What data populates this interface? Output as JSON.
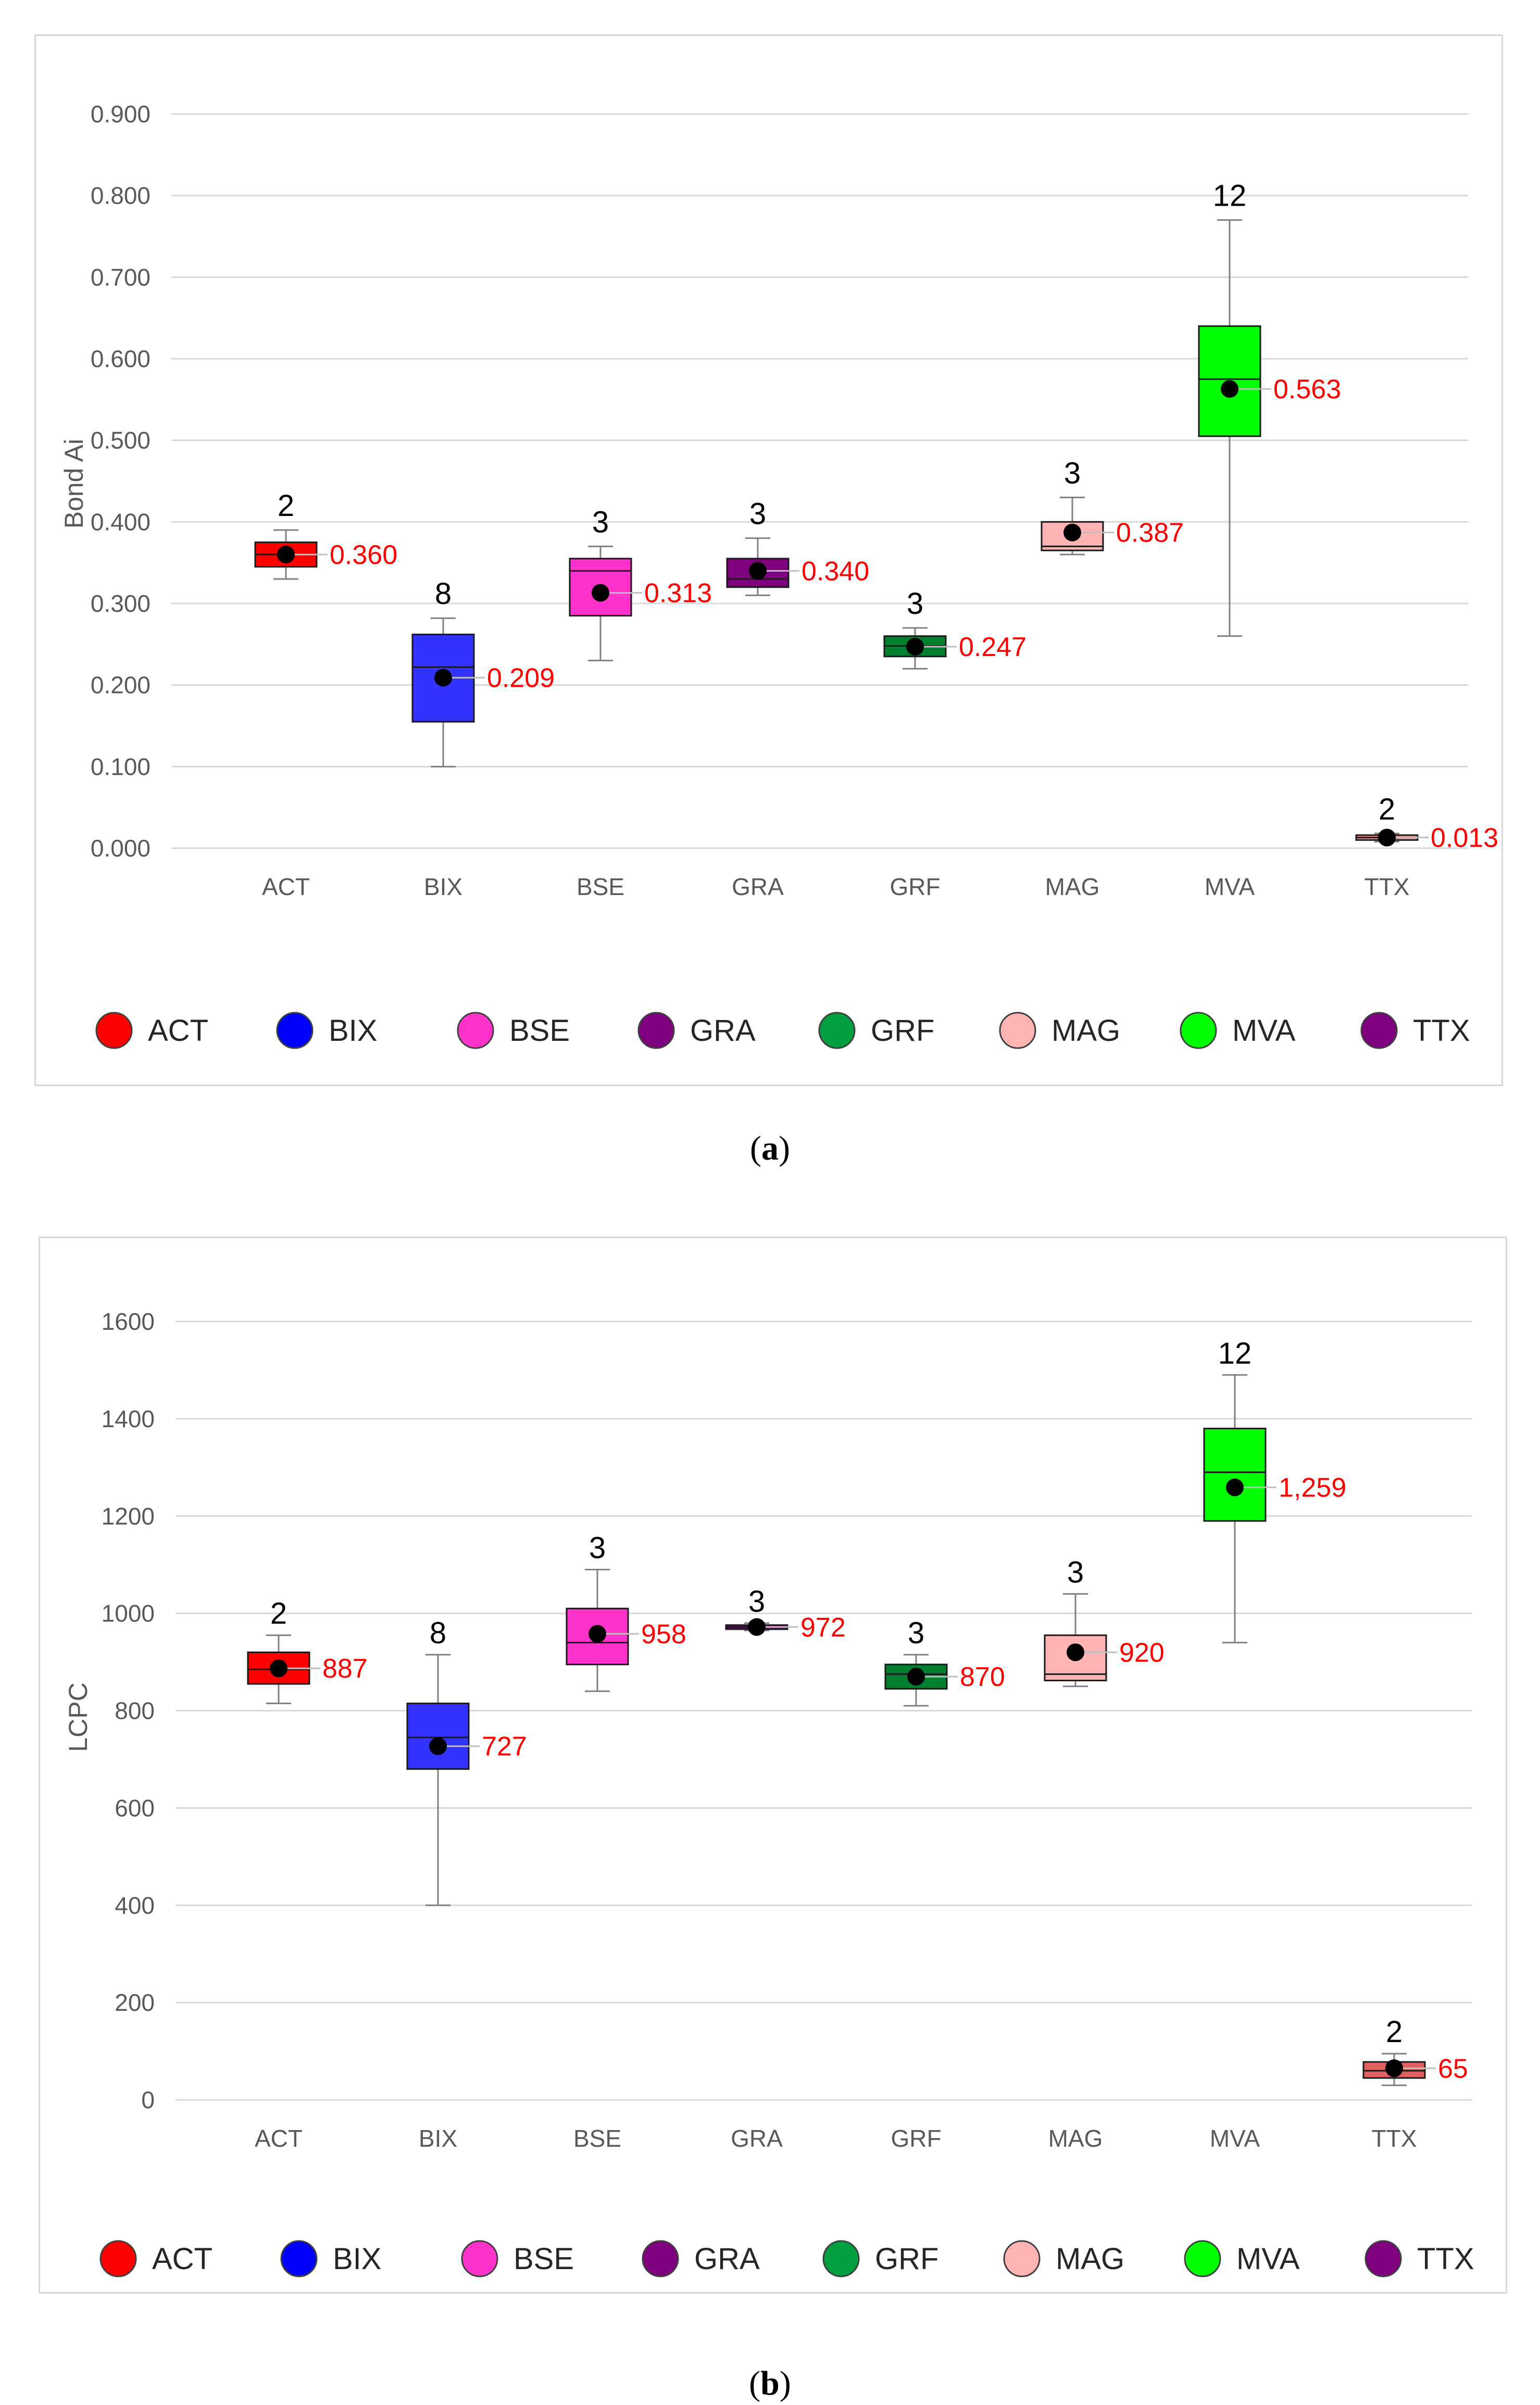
{
  "captions": {
    "a": "a",
    "b": "b"
  },
  "chart_data": [
    {
      "type": "box",
      "panel": "a",
      "ylabel": "Bond Ai",
      "ylim": [
        0,
        0.9
      ],
      "yticks": [
        "0.000",
        "0.100",
        "0.200",
        "0.300",
        "0.400",
        "0.500",
        "0.600",
        "0.700",
        "0.800",
        "0.900"
      ],
      "categories": [
        "ACT",
        "BIX",
        "BSE",
        "GRA",
        "GRF",
        "MAG",
        "MVA",
        "TTX"
      ],
      "boxes": [
        {
          "name": "ACT",
          "min": 0.33,
          "q1": 0.345,
          "median": 0.36,
          "q3": 0.375,
          "max": 0.39,
          "mean": 0.36,
          "n": "2",
          "mean_label": "0.360",
          "color": "#ff0000"
        },
        {
          "name": "BIX",
          "min": 0.1,
          "q1": 0.155,
          "median": 0.222,
          "q3": 0.262,
          "max": 0.282,
          "mean": 0.209,
          "n": "8",
          "mean_label": "0.209",
          "color": "#3333ff"
        },
        {
          "name": "BSE",
          "min": 0.23,
          "q1": 0.285,
          "median": 0.34,
          "q3": 0.355,
          "max": 0.37,
          "mean": 0.313,
          "n": "3",
          "mean_label": "0.313",
          "color": "#ff33cc"
        },
        {
          "name": "GRA",
          "min": 0.31,
          "q1": 0.32,
          "median": 0.33,
          "q3": 0.355,
          "max": 0.38,
          "mean": 0.34,
          "n": "3",
          "mean_label": "0.340",
          "color": "#7f007f"
        },
        {
          "name": "GRF",
          "min": 0.22,
          "q1": 0.235,
          "median": 0.248,
          "q3": 0.26,
          "max": 0.27,
          "mean": 0.247,
          "n": "3",
          "mean_label": "0.247",
          "color": "#007f2f"
        },
        {
          "name": "MAG",
          "min": 0.36,
          "q1": 0.365,
          "median": 0.37,
          "q3": 0.4,
          "max": 0.43,
          "mean": 0.387,
          "n": "3",
          "mean_label": "0.387",
          "color": "#ffb3b3"
        },
        {
          "name": "MVA",
          "min": 0.26,
          "q1": 0.505,
          "median": 0.575,
          "q3": 0.64,
          "max": 0.77,
          "mean": 0.563,
          "n": "12",
          "mean_label": "0.563",
          "color": "#00ff00"
        },
        {
          "name": "TTX",
          "min": 0.008,
          "q1": 0.01,
          "median": 0.013,
          "q3": 0.016,
          "max": 0.018,
          "mean": 0.013,
          "n": "2",
          "mean_label": "0.013",
          "color": "#ff9999"
        }
      ],
      "legend": [
        {
          "label": "ACT",
          "color": "#ff0000"
        },
        {
          "label": "BIX",
          "color": "#0000ff"
        },
        {
          "label": "BSE",
          "color": "#ff33cc"
        },
        {
          "label": "GRA",
          "color": "#7f007f"
        },
        {
          "label": "GRF",
          "color": "#00a040"
        },
        {
          "label": "MAG",
          "color": "#ffb3b3"
        },
        {
          "label": "MVA",
          "color": "#00ff00"
        },
        {
          "label": "TTX",
          "color": "#7f007f"
        }
      ],
      "legend_position": "bottom",
      "mean_label_color": "#ff0000"
    },
    {
      "type": "box",
      "panel": "b",
      "ylabel": "LCPC",
      "ylim": [
        0,
        1600
      ],
      "yticks": [
        "0",
        "200",
        "400",
        "600",
        "800",
        "1000",
        "1200",
        "1400",
        "1600"
      ],
      "categories": [
        "ACT",
        "BIX",
        "BSE",
        "GRA",
        "GRF",
        "MAG",
        "MVA",
        "TTX"
      ],
      "boxes": [
        {
          "name": "ACT",
          "min": 815,
          "q1": 855,
          "median": 885,
          "q3": 920,
          "max": 955,
          "mean": 887,
          "n": "2",
          "mean_label": "887",
          "color": "#ff0000"
        },
        {
          "name": "BIX",
          "min": 400,
          "q1": 680,
          "median": 745,
          "q3": 815,
          "max": 915,
          "mean": 727,
          "n": "8",
          "mean_label": "727",
          "color": "#3333ff"
        },
        {
          "name": "BSE",
          "min": 840,
          "q1": 895,
          "median": 940,
          "q3": 1010,
          "max": 1090,
          "mean": 958,
          "n": "3",
          "mean_label": "958",
          "color": "#ff33cc"
        },
        {
          "name": "GRA",
          "min": 965,
          "q1": 968,
          "median": 972,
          "q3": 976,
          "max": 980,
          "mean": 972,
          "n": "3",
          "mean_label": "972",
          "color": "#7f007f"
        },
        {
          "name": "GRF",
          "min": 810,
          "q1": 845,
          "median": 875,
          "q3": 895,
          "max": 915,
          "mean": 870,
          "n": "3",
          "mean_label": "870",
          "color": "#007f2f"
        },
        {
          "name": "MAG",
          "min": 850,
          "q1": 862,
          "median": 875,
          "q3": 955,
          "max": 1040,
          "mean": 920,
          "n": "3",
          "mean_label": "920",
          "color": "#ffb3b3"
        },
        {
          "name": "MVA",
          "min": 940,
          "q1": 1190,
          "median": 1290,
          "q3": 1380,
          "max": 1490,
          "mean": 1259,
          "n": "12",
          "mean_label": "1,259",
          "color": "#00ff00"
        },
        {
          "name": "TTX",
          "min": 30,
          "q1": 45,
          "median": 60,
          "q3": 78,
          "max": 95,
          "mean": 65,
          "n": "2",
          "mean_label": "65",
          "color": "#e06060"
        }
      ],
      "legend": [
        {
          "label": "ACT",
          "color": "#ff0000"
        },
        {
          "label": "BIX",
          "color": "#0000ff"
        },
        {
          "label": "BSE",
          "color": "#ff33cc"
        },
        {
          "label": "GRA",
          "color": "#7f007f"
        },
        {
          "label": "GRF",
          "color": "#00a040"
        },
        {
          "label": "MAG",
          "color": "#ffb3b3"
        },
        {
          "label": "MVA",
          "color": "#00ff00"
        },
        {
          "label": "TTX",
          "color": "#7f007f"
        }
      ],
      "legend_position": "bottom",
      "mean_label_color": "#ff0000"
    }
  ]
}
